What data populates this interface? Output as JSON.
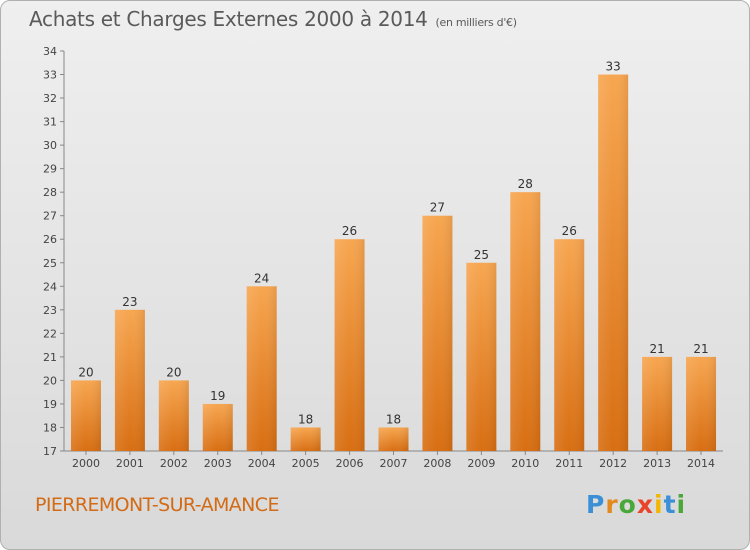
{
  "chart_data": {
    "type": "bar",
    "title": "Achats et Charges Externes 2000 à 2014",
    "subtitle": "(en milliers d'€)",
    "xlabel": "",
    "ylabel": "",
    "categories": [
      "2000",
      "2001",
      "2002",
      "2003",
      "2004",
      "2005",
      "2006",
      "2007",
      "2008",
      "2009",
      "2010",
      "2011",
      "2012",
      "2013",
      "2014"
    ],
    "values": [
      20,
      23,
      20,
      19,
      24,
      18,
      26,
      18,
      27,
      25,
      28,
      26,
      33,
      21,
      21
    ],
    "ylim": [
      17,
      34
    ],
    "yticks": [
      17,
      18,
      19,
      20,
      21,
      22,
      23,
      24,
      25,
      26,
      27,
      28,
      29,
      30,
      31,
      32,
      33,
      34
    ],
    "grid": false,
    "bar_color_top": "#f7a650",
    "bar_color_bottom": "#d86e12"
  },
  "footer": {
    "place": "PIERREMONT-SUR-AMANCE",
    "logo_letters": [
      "P",
      "r",
      "o",
      "x",
      "i",
      "t",
      "i"
    ],
    "logo_colors": [
      "#3a8fd6",
      "#e38a1f",
      "#4aa83a",
      "#e8442a",
      "#f2b705",
      "#3a8fd6",
      "#4aa83a"
    ]
  }
}
